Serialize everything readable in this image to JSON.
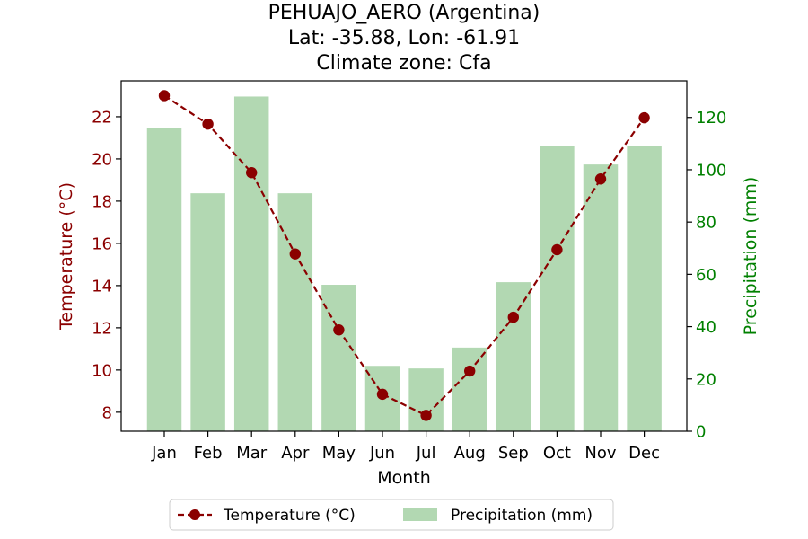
{
  "chart_data": {
    "type": "bar+line",
    "title_lines": [
      "PEHUAJO_AERO (Argentina)",
      "Lat: -35.88, Lon: -61.91",
      "Climate zone: Cfa"
    ],
    "xlabel": "Month",
    "categories": [
      "Jan",
      "Feb",
      "Mar",
      "Apr",
      "May",
      "Jun",
      "Jul",
      "Aug",
      "Sep",
      "Oct",
      "Nov",
      "Dec"
    ],
    "temperature": {
      "name": "Temperature (°C)",
      "axis_label": "Temperature (°C)",
      "color": "#8b0000",
      "values": [
        23.0,
        21.65,
        19.35,
        15.5,
        11.9,
        8.85,
        7.85,
        9.95,
        12.5,
        15.7,
        19.05,
        21.95
      ],
      "ylim": [
        7.1,
        23.7
      ],
      "ticks": [
        8,
        10,
        12,
        14,
        16,
        18,
        20,
        22
      ]
    },
    "precipitation": {
      "name": "Precipitation (mm)",
      "axis_label": "Precipitation (mm)",
      "color": "#b2d8b2",
      "axis_color": "#008000",
      "values": [
        116,
        91,
        128,
        91,
        56,
        25,
        24,
        32,
        57,
        109,
        102,
        109
      ],
      "ylim": [
        0,
        134
      ],
      "ticks": [
        0,
        20,
        40,
        60,
        80,
        100,
        120
      ]
    },
    "legend_position": "bottom-center"
  }
}
